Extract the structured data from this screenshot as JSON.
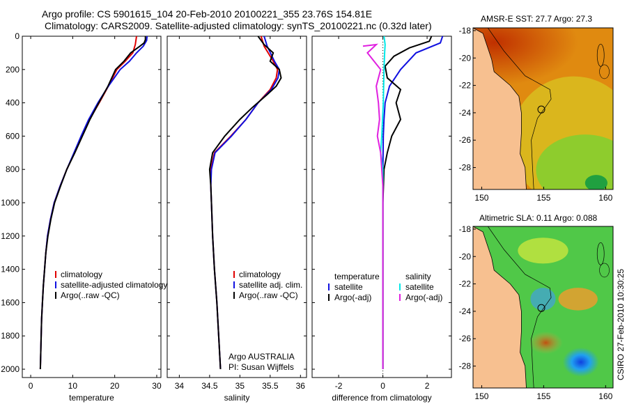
{
  "header": {
    "title_line1": "Argo profile: CS 5901615_104 20-Feb-2010 20100221_355 23.76S 154.81E",
    "title_line2": "Climatology: CARS2009. Satellite-adjusted climatology: synTS_20100221.nc (0.32d later)"
  },
  "side_label": "CSIRO 27-Feb-2010 10:30:25",
  "colors": {
    "climatology": "#e00000",
    "satellite": "#1010e0",
    "argo": "#000000",
    "sal_satellite": "#00e8e8",
    "sal_argo": "#e020e0",
    "land": "#f7c090"
  },
  "chart_data": [
    {
      "type": "line",
      "xlabel": "temperature",
      "ylabel": "",
      "xlim": [
        -2,
        31
      ],
      "ylim": [
        2050,
        0
      ],
      "xticks": [
        0,
        10,
        20,
        30
      ],
      "yticks": [
        0,
        200,
        400,
        600,
        800,
        1000,
        1200,
        1400,
        1600,
        1800,
        2000
      ],
      "legend": [
        "climatology",
        "satellite-adjusted climatology",
        "Argo(..raw -QC)"
      ],
      "series": [
        {
          "name": "climatology",
          "color": "#e00000",
          "points": [
            [
              25.2,
              0
            ],
            [
              24.9,
              50
            ],
            [
              24.3,
              100
            ],
            [
              22.5,
              150
            ],
            [
              20.5,
              200
            ],
            [
              18.5,
              300
            ],
            [
              16.3,
              400
            ],
            [
              14.0,
              500
            ],
            [
              12.2,
              600
            ],
            [
              10.4,
              700
            ],
            [
              8.6,
              800
            ],
            [
              7.0,
              900
            ],
            [
              5.6,
              1000
            ],
            [
              4.7,
              1100
            ],
            [
              4.0,
              1200
            ],
            [
              3.6,
              1300
            ],
            [
              3.3,
              1400
            ],
            [
              3.0,
              1500
            ],
            [
              2.8,
              1600
            ],
            [
              2.6,
              1700
            ],
            [
              2.5,
              1800
            ],
            [
              2.4,
              1900
            ],
            [
              2.3,
              2000
            ]
          ]
        },
        {
          "name": "satellite-adjusted climatology",
          "color": "#1010e0",
          "points": [
            [
              27.7,
              0
            ],
            [
              27.6,
              25
            ],
            [
              26.8,
              60
            ],
            [
              25.2,
              100
            ],
            [
              23.5,
              150
            ],
            [
              21.3,
              200
            ],
            [
              18.5,
              300
            ],
            [
              16.0,
              400
            ],
            [
              13.8,
              500
            ],
            [
              12.0,
              600
            ],
            [
              10.3,
              700
            ],
            [
              8.6,
              800
            ],
            [
              7.0,
              900
            ],
            [
              5.6,
              1000
            ],
            [
              4.7,
              1100
            ],
            [
              4.0,
              1200
            ],
            [
              3.6,
              1300
            ],
            [
              3.3,
              1400
            ],
            [
              3.0,
              1500
            ],
            [
              2.8,
              1600
            ],
            [
              2.6,
              1700
            ],
            [
              2.5,
              1800
            ],
            [
              2.4,
              1900
            ],
            [
              2.3,
              2000
            ]
          ]
        },
        {
          "name": "Argo(..raw -QC)",
          "color": "#000000",
          "points": [
            [
              27.3,
              0
            ],
            [
              27.3,
              20
            ],
            [
              27.0,
              40
            ],
            [
              26.0,
              60
            ],
            [
              23.8,
              100
            ],
            [
              22.2,
              150
            ],
            [
              20.2,
              200
            ],
            [
              18.4,
              300
            ],
            [
              16.2,
              400
            ],
            [
              14.1,
              500
            ],
            [
              12.3,
              600
            ],
            [
              10.5,
              700
            ],
            [
              8.6,
              800
            ],
            [
              7.1,
              900
            ],
            [
              5.7,
              1000
            ],
            [
              4.8,
              1100
            ],
            [
              4.1,
              1200
            ],
            [
              3.6,
              1300
            ],
            [
              3.3,
              1400
            ],
            [
              3.0,
              1500
            ],
            [
              2.8,
              1600
            ],
            [
              2.6,
              1700
            ],
            [
              2.5,
              1800
            ],
            [
              2.4,
              1900
            ],
            [
              2.3,
              2000
            ]
          ]
        }
      ]
    },
    {
      "type": "line",
      "xlabel": "salinity",
      "xlim": [
        33.8,
        36.1
      ],
      "ylim": [
        2050,
        0
      ],
      "xticks": [
        34,
        34.5,
        35,
        35.5,
        36
      ],
      "legend": [
        "climatology",
        "satellite adj. clim.",
        "Argo(..raw -QC)"
      ],
      "annotation_line1": "Argo AUSTRALIA",
      "annotation_line2": "PI: Susan Wijffels",
      "series": [
        {
          "name": "climatology",
          "color": "#e00000",
          "points": [
            [
              35.35,
              0
            ],
            [
              35.4,
              60
            ],
            [
              35.55,
              150
            ],
            [
              35.62,
              200
            ],
            [
              35.6,
              250
            ],
            [
              35.5,
              320
            ],
            [
              35.3,
              400
            ],
            [
              35.1,
              500
            ],
            [
              34.85,
              600
            ],
            [
              34.58,
              700
            ],
            [
              34.52,
              800
            ],
            [
              34.52,
              900
            ],
            [
              34.53,
              1000
            ],
            [
              34.55,
              1200
            ],
            [
              34.58,
              1400
            ],
            [
              34.62,
              1600
            ],
            [
              34.65,
              1800
            ],
            [
              34.68,
              2000
            ]
          ]
        },
        {
          "name": "satellite adj. clim.",
          "color": "#1010e0",
          "points": [
            [
              35.4,
              0
            ],
            [
              35.45,
              60
            ],
            [
              35.57,
              150
            ],
            [
              35.65,
              200
            ],
            [
              35.63,
              250
            ],
            [
              35.52,
              320
            ],
            [
              35.3,
              400
            ],
            [
              35.1,
              500
            ],
            [
              34.86,
              600
            ],
            [
              34.59,
              700
            ],
            [
              34.53,
              800
            ],
            [
              34.52,
              900
            ],
            [
              34.53,
              1000
            ],
            [
              34.55,
              1200
            ],
            [
              34.58,
              1400
            ],
            [
              34.62,
              1600
            ],
            [
              34.65,
              1800
            ],
            [
              34.68,
              2000
            ]
          ]
        },
        {
          "name": "Argo(..raw -QC)",
          "color": "#000000",
          "points": [
            [
              35.3,
              0
            ],
            [
              35.4,
              50
            ],
            [
              35.55,
              100
            ],
            [
              35.5,
              150
            ],
            [
              35.65,
              200
            ],
            [
              35.68,
              250
            ],
            [
              35.6,
              300
            ],
            [
              35.45,
              350
            ],
            [
              35.2,
              430
            ],
            [
              35.0,
              500
            ],
            [
              34.75,
              600
            ],
            [
              34.55,
              700
            ],
            [
              34.5,
              800
            ],
            [
              34.52,
              900
            ],
            [
              34.53,
              1000
            ],
            [
              34.55,
              1200
            ],
            [
              34.58,
              1400
            ],
            [
              34.62,
              1600
            ],
            [
              34.65,
              1800
            ],
            [
              34.68,
              2000
            ]
          ]
        }
      ]
    },
    {
      "type": "line",
      "xlabel": "difference from climatology",
      "xlim": [
        -3.2,
        3.1
      ],
      "ylim": [
        2050,
        0
      ],
      "xticks": [
        -2,
        0,
        2
      ],
      "legend_temperature_heading": "temperature",
      "legend_temperature": [
        "satellite",
        "Argo(-adj)"
      ],
      "legend_salinity_heading": "salinity",
      "legend_salinity": [
        "satellite",
        "Argo(-adj)"
      ],
      "series": [
        {
          "name": "satellite",
          "color": "#1010e0",
          "points": [
            [
              2.7,
              0
            ],
            [
              2.6,
              40
            ],
            [
              1.5,
              100
            ],
            [
              0.8,
              200
            ],
            [
              0.3,
              300
            ],
            [
              0.1,
              400
            ],
            [
              0.05,
              500
            ],
            [
              0.02,
              600
            ],
            [
              0,
              800
            ],
            [
              0,
              2000
            ]
          ]
        },
        {
          "name": "Argo(-adj)",
          "color": "#000000",
          "points": [
            [
              2.2,
              0
            ],
            [
              2.1,
              30
            ],
            [
              1.2,
              70
            ],
            [
              0.5,
              120
            ],
            [
              0.1,
              180
            ],
            [
              0.2,
              250
            ],
            [
              0.8,
              320
            ],
            [
              0.6,
              400
            ],
            [
              0.8,
              500
            ],
            [
              0.4,
              600
            ],
            [
              0.2,
              700
            ],
            [
              0.05,
              800
            ],
            [
              0,
              1000
            ],
            [
              0,
              2000
            ]
          ]
        },
        {
          "name": "satellite",
          "color": "#00e8e8",
          "points": [
            [
              0.05,
              0
            ],
            [
              0.1,
              50
            ],
            [
              0.08,
              100
            ],
            [
              0.05,
              200
            ],
            [
              0.02,
              400
            ],
            [
              -0.05,
              600
            ],
            [
              -0.1,
              700
            ],
            [
              0,
              800
            ],
            [
              0,
              2000
            ]
          ]
        },
        {
          "name": "Argo(-adj)",
          "color": "#e020e0",
          "points": [
            [
              -0.9,
              60
            ],
            [
              -0.3,
              50
            ],
            [
              -0.7,
              100
            ],
            [
              -0.4,
              150
            ],
            [
              -0.1,
              200
            ],
            [
              -0.3,
              300
            ],
            [
              -0.2,
              400
            ],
            [
              -0.15,
              500
            ],
            [
              -0.25,
              600
            ],
            [
              -0.1,
              700
            ],
            [
              -0.05,
              800
            ],
            [
              0,
              900
            ],
            [
              0,
              2000
            ]
          ]
        }
      ]
    },
    {
      "type": "heatmap",
      "title": "AMSR-E SST: 27.7 Argo: 27.3",
      "xlim": [
        149.3,
        160.6
      ],
      "ylim": [
        -29.6,
        -17.8
      ],
      "xticks": [
        150,
        155,
        160
      ],
      "yticks": [
        -18,
        -20,
        -22,
        -24,
        -26,
        -28
      ],
      "argo_position": [
        154.81,
        -23.76
      ]
    },
    {
      "type": "heatmap",
      "title": "Altimetric SLA: 0.11 Argo: 0.088",
      "xlim": [
        149.3,
        160.6
      ],
      "ylim": [
        -29.6,
        -17.8
      ],
      "xticks": [
        150,
        155,
        160
      ],
      "yticks": [
        -18,
        -20,
        -22,
        -24,
        -26,
        -28
      ],
      "argo_position": [
        154.81,
        -23.76
      ]
    }
  ]
}
